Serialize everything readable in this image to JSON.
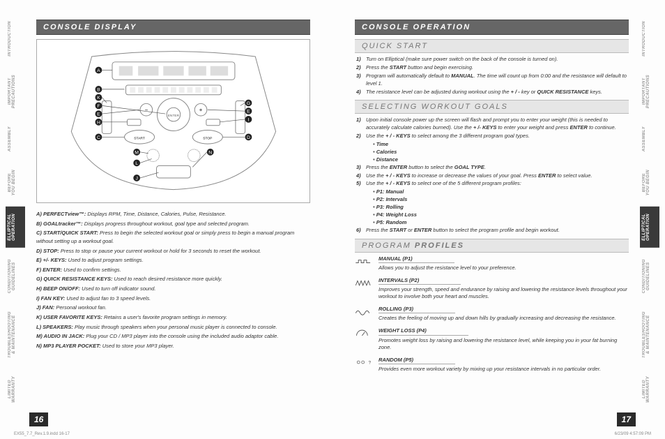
{
  "tabs": [
    "INTRODUCTION",
    "IMPORTANT\nPRECAUTIONS",
    "ASSEMBLY",
    "BEFORE\nYOU BEGIN",
    "ELLIPTICAL\nOPERATION",
    "CONDITIONING\nGUIDELINES",
    "TROUBLESHOOTING\n& MAINTENANCE",
    "LIMITED\nWARRANTY"
  ],
  "active_tab_index": 4,
  "left": {
    "header": "CONSOLE DISPLAY",
    "legend": [
      {
        "k": "A)",
        "t": "PERFECTview™:",
        "d": " Displays RPM, Time, Distance, Calories, Pulse, Resistance."
      },
      {
        "k": "B)",
        "t": "GOALtracker™:",
        "d": " Displays progress throughout workout, goal type and selected program."
      },
      {
        "k": "C)",
        "t": "START/QUICK START:",
        "d": " Press to begin the selected workout goal or simply press to begin a manual program without setting up a workout goal."
      },
      {
        "k": "D)",
        "t": "STOP:",
        "d": " Press to stop or pause your current workout or hold for 3 seconds to reset the workout."
      },
      {
        "k": "E)",
        "t": "+/- KEYS:",
        "d": " Used to adjust program settings."
      },
      {
        "k": "F)",
        "t": "ENTER:",
        "d": " Used to confirm settings."
      },
      {
        "k": "G)",
        "t": "QUICK RESISTANCE KEYS:",
        "d": " Used to reach desired resistance more quickly."
      },
      {
        "k": "H)",
        "t": "BEEP ON/OFF:",
        "d": " Used to turn off indicator sound."
      },
      {
        "k": "I)",
        "t": "FAN KEY:",
        "d": " Used to adjust fan to 3 speed levels."
      },
      {
        "k": "J)",
        "t": "FAN:",
        "d": " Personal workout fan."
      },
      {
        "k": "K)",
        "t": "USER FAVORITE KEYS:",
        "d": " Retains a user's favorite program settings in memory."
      },
      {
        "k": "L)",
        "t": "SPEAKERS:",
        "d": " Play music through speakers when your personal music player is connected to console."
      },
      {
        "k": "M)",
        "t": "AUDIO IN JACK:",
        "d": " Plug your CD / MP3 player into the console using the included audio adaptor cable."
      },
      {
        "k": "N)",
        "t": "MP3 PLAYER POCKET:",
        "d": " Used to store your MP3 player."
      }
    ],
    "pagenum": "16"
  },
  "right": {
    "header": "CONSOLE OPERATION",
    "quick_start": {
      "title": "QUICK START",
      "steps": [
        {
          "n": "1)",
          "t": "Turn on Elliptical (make sure power switch on the back of the console is turned on)."
        },
        {
          "n": "2)",
          "t": "Press the <b>START</b> button and begin exercising."
        },
        {
          "n": "3)",
          "t": "Program will automatically default to <b>MANUAL</b>. The time will count up from 0:00 and the resistance will default to level 1."
        },
        {
          "n": "4)",
          "t": "The resistance level can be adjusted during workout using the <b>+ / -</b> key or <b>QUICK RESISTANCE</b> keys."
        }
      ]
    },
    "selecting": {
      "title": "SELECTING WORKOUT GOALS",
      "steps": [
        {
          "n": "1)",
          "t": "Upon initial console power up the screen will flash and prompt you to enter your weight (this is needed to accurately calculate calories burned). Use the <b>+ /- KEYS</b> to enter your weight and press <b>ENTER</b> to continue."
        },
        {
          "n": "2)",
          "t": "Use the <b>+ / - KEYS</b> to select among the 3 different program goal types.",
          "bullets": [
            "Time",
            "Calories",
            "Distance"
          ]
        },
        {
          "n": "3)",
          "t": "Press the <b>ENTER</b> button to select the <b>GOAL TYPE</b>."
        },
        {
          "n": "4)",
          "t": "Use the <b>+ / - KEYS</b> to increase or decrease the values of your goal. Press <b>ENTER</b> to select value."
        },
        {
          "n": "5)",
          "t": "Use the <b>+ / - KEYS</b> to select one of the 5 different program profiles:",
          "bullets": [
            "P1: Manual",
            "P2: Intervals",
            "P3: Rolling",
            "P4: Weight Loss",
            "P5: Random"
          ]
        },
        {
          "n": "6)",
          "t": "Press the <b>START</b> or <b>ENTER</b> button to select the program profile and begin workout."
        }
      ]
    },
    "profiles": {
      "title_a": "PROGRAM ",
      "title_b": "PROFILES",
      "items": [
        {
          "icon": "manual",
          "title": "MANUAL (P1)",
          "desc": "Allows you to adjust the resistance level to your preference."
        },
        {
          "icon": "intervals",
          "title": "INTERVALS (P2)",
          "desc": "Improves your strength, speed and endurance by raising and lowering the resistance levels throughout your workout to involve both your heart and muscles."
        },
        {
          "icon": "rolling",
          "title": "ROLLING (P3)",
          "desc": "Creates the feeling of moving up and down hills by gradually increasing and decreasing the resistance."
        },
        {
          "icon": "weight",
          "title": "WEIGHT LOSS (P4)",
          "desc": "Promotes weight loss by raising and lowering the resistance level, while keeping you in your fat burning zone."
        },
        {
          "icon": "random",
          "title": "RANDOM (P5)",
          "desc": "Provides even more workout variety by mixing up your resistance intervals in no particular order."
        }
      ]
    },
    "pagenum": "17"
  },
  "footer": {
    "left": "EX55_7.7_Rev.1.9.indd   16-17",
    "right": "6/23/09   4:57:09 PM"
  },
  "diagram_labels": [
    "A",
    "B",
    "K",
    "F",
    "E",
    "H",
    "C",
    "M",
    "L",
    "J",
    "G",
    "I",
    "D",
    "N"
  ],
  "colors": {
    "hdr_dark": "#666666",
    "hdr_light": "#e6e6e6",
    "tab_active": "#3a3a3a",
    "border": "#aaaaaa"
  }
}
